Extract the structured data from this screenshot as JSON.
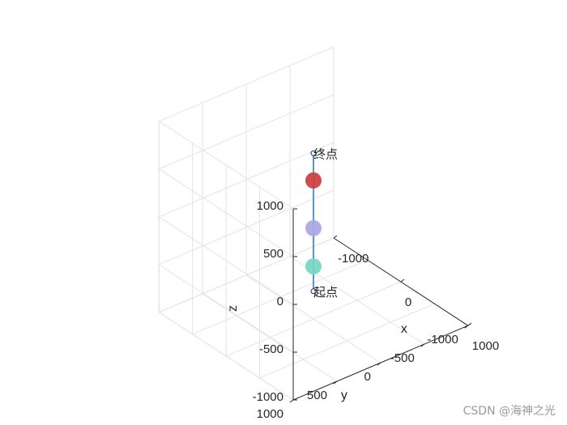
{
  "chart_data": {
    "type": "scatter3d",
    "title": "",
    "xlabel": "x",
    "ylabel": "y",
    "zlabel": "z",
    "xlim": [
      -1000,
      1000
    ],
    "ylim": [
      -1000,
      1000
    ],
    "zlim": [
      -1000,
      1000
    ],
    "xticks": [
      "-1000",
      "0",
      "1000"
    ],
    "yticks": [
      "-1000",
      "-500",
      "0",
      "500",
      "1000"
    ],
    "zticks": [
      "-1000",
      "-500",
      "0",
      "500",
      "1000"
    ],
    "grid": true,
    "trajectory": {
      "color": "#0072BD",
      "start": {
        "x": 0,
        "y": 0,
        "z": -710,
        "label": "起点"
      },
      "end": {
        "x": 0,
        "y": 0,
        "z": 735,
        "label": "终点"
      }
    },
    "spheres": [
      {
        "x": 0,
        "y": 0,
        "z": 450,
        "color": "#D03C3C"
      },
      {
        "x": 0,
        "y": 0,
        "z": -50,
        "color": "#AAA6E6"
      },
      {
        "x": 0,
        "y": 0,
        "z": -450,
        "color": "#78D6C0"
      }
    ]
  },
  "watermark": "CSDN @海神之光"
}
